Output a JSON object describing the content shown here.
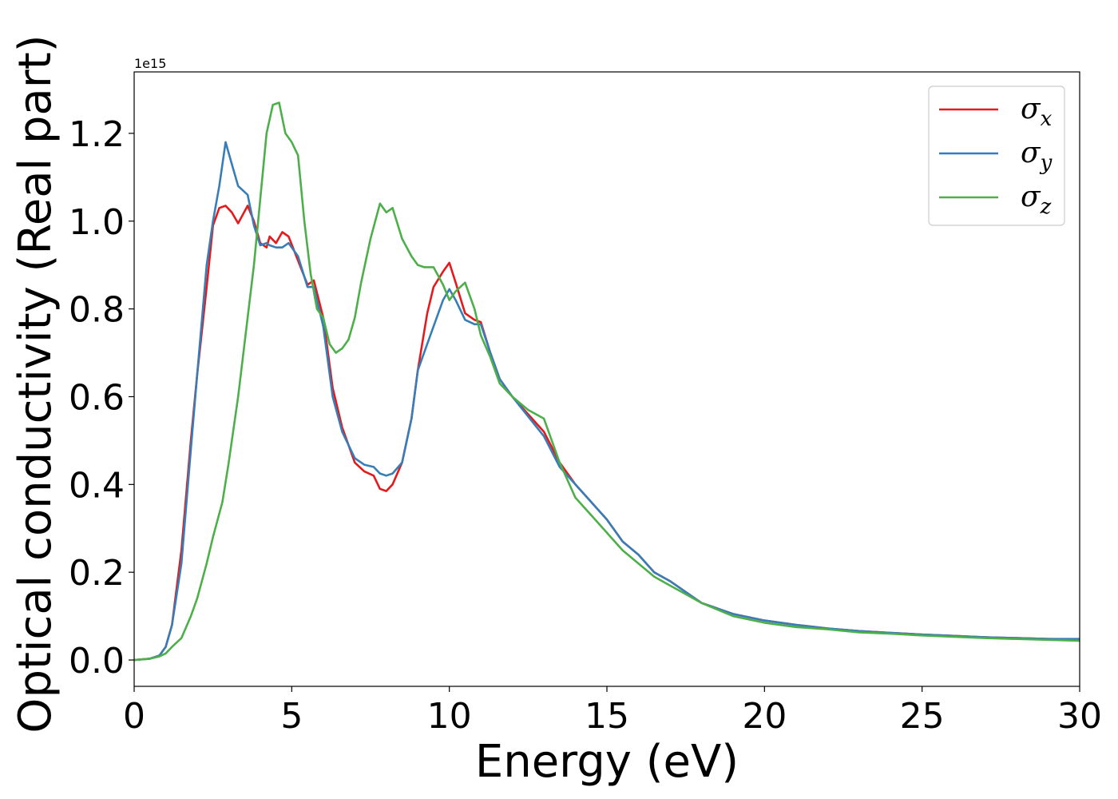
{
  "chart_data": {
    "type": "line",
    "title": "",
    "xlabel": "Energy (eV)",
    "ylabel": "Optical conductivity (Real part)",
    "y_offset_label": "1e15",
    "xlim": [
      0,
      30
    ],
    "ylim": [
      -0.06,
      1.34
    ],
    "xticks": [
      0,
      5,
      10,
      15,
      20,
      25,
      30
    ],
    "xtick_labels": [
      "0",
      "5",
      "10",
      "15",
      "20",
      "25",
      "30"
    ],
    "yticks": [
      0.0,
      0.2,
      0.4,
      0.6,
      0.8,
      1.0,
      1.2
    ],
    "ytick_labels": [
      "0.0",
      "0.2",
      "0.4",
      "0.6",
      "0.8",
      "1.0",
      "1.2"
    ],
    "grid": false,
    "legend_position": "top-right",
    "series": [
      {
        "legend_base": "σ",
        "legend_sub": "x",
        "color": "#e41a1c",
        "x": [
          0,
          0.5,
          0.8,
          1.0,
          1.2,
          1.5,
          1.8,
          2.0,
          2.3,
          2.5,
          2.7,
          2.9,
          3.1,
          3.3,
          3.6,
          3.8,
          4.0,
          4.2,
          4.3,
          4.5,
          4.7,
          4.9,
          5.2,
          5.5,
          5.7,
          6.0,
          6.3,
          6.6,
          7.0,
          7.3,
          7.6,
          7.8,
          8.0,
          8.2,
          8.5,
          8.8,
          9.0,
          9.3,
          9.5,
          9.8,
          10.0,
          10.2,
          10.5,
          10.8,
          11.0,
          11.3,
          11.6,
          12.0,
          12.5,
          13.0,
          13.5,
          14.0,
          14.5,
          15.0,
          15.5,
          16.0,
          16.5,
          17.0,
          17.5,
          18.0,
          19.0,
          20.0,
          21.0,
          22.0,
          23.0,
          24.0,
          25.0,
          26.0,
          27.0,
          28.0,
          29.0,
          30.0
        ],
        "values": [
          0.0,
          0.003,
          0.01,
          0.03,
          0.08,
          0.25,
          0.5,
          0.65,
          0.85,
          0.99,
          1.03,
          1.035,
          1.02,
          0.995,
          1.035,
          1.0,
          0.95,
          0.94,
          0.965,
          0.95,
          0.975,
          0.965,
          0.91,
          0.855,
          0.865,
          0.78,
          0.62,
          0.53,
          0.45,
          0.43,
          0.42,
          0.39,
          0.385,
          0.4,
          0.45,
          0.55,
          0.66,
          0.79,
          0.85,
          0.885,
          0.905,
          0.86,
          0.79,
          0.775,
          0.77,
          0.7,
          0.64,
          0.6,
          0.56,
          0.52,
          0.45,
          0.4,
          0.36,
          0.32,
          0.27,
          0.24,
          0.2,
          0.18,
          0.155,
          0.13,
          0.105,
          0.09,
          0.08,
          0.072,
          0.066,
          0.062,
          0.058,
          0.055,
          0.052,
          0.05,
          0.048,
          0.047
        ]
      },
      {
        "legend_base": "σ",
        "legend_sub": "y",
        "color": "#377eb8",
        "x": [
          0,
          0.5,
          0.8,
          1.0,
          1.2,
          1.5,
          1.8,
          2.0,
          2.3,
          2.5,
          2.7,
          2.9,
          3.1,
          3.3,
          3.6,
          3.8,
          4.0,
          4.2,
          4.3,
          4.5,
          4.7,
          4.9,
          5.2,
          5.5,
          5.7,
          6.0,
          6.3,
          6.6,
          7.0,
          7.3,
          7.6,
          7.8,
          8.0,
          8.2,
          8.5,
          8.8,
          9.0,
          9.3,
          9.5,
          9.8,
          10.0,
          10.2,
          10.5,
          10.8,
          11.0,
          11.3,
          11.6,
          12.0,
          12.5,
          13.0,
          13.5,
          14.0,
          14.5,
          15.0,
          15.5,
          16.0,
          16.5,
          17.0,
          17.5,
          18.0,
          19.0,
          20.0,
          21.0,
          22.0,
          23.0,
          24.0,
          25.0,
          26.0,
          27.0,
          28.0,
          29.0,
          30.0
        ],
        "values": [
          0.0,
          0.003,
          0.01,
          0.03,
          0.08,
          0.22,
          0.48,
          0.65,
          0.9,
          1.0,
          1.08,
          1.18,
          1.13,
          1.08,
          1.06,
          0.99,
          0.945,
          0.95,
          0.945,
          0.94,
          0.94,
          0.95,
          0.92,
          0.85,
          0.85,
          0.76,
          0.6,
          0.52,
          0.46,
          0.445,
          0.44,
          0.425,
          0.42,
          0.425,
          0.45,
          0.55,
          0.66,
          0.72,
          0.76,
          0.82,
          0.845,
          0.82,
          0.775,
          0.765,
          0.765,
          0.7,
          0.64,
          0.6,
          0.555,
          0.51,
          0.44,
          0.4,
          0.36,
          0.32,
          0.27,
          0.24,
          0.2,
          0.18,
          0.155,
          0.13,
          0.105,
          0.09,
          0.08,
          0.072,
          0.066,
          0.062,
          0.058,
          0.055,
          0.052,
          0.05,
          0.048,
          0.048
        ]
      },
      {
        "legend_base": "σ",
        "legend_sub": "z",
        "color": "#4daf4a",
        "x": [
          0,
          0.5,
          0.8,
          1.0,
          1.2,
          1.5,
          1.8,
          2.0,
          2.3,
          2.5,
          2.8,
          3.0,
          3.3,
          3.6,
          3.8,
          4.0,
          4.2,
          4.4,
          4.6,
          4.8,
          5.0,
          5.2,
          5.4,
          5.6,
          5.8,
          6.0,
          6.2,
          6.4,
          6.6,
          6.8,
          7.0,
          7.2,
          7.5,
          7.8,
          8.0,
          8.2,
          8.5,
          8.8,
          9.0,
          9.2,
          9.5,
          9.8,
          10.0,
          10.2,
          10.5,
          10.8,
          11.0,
          11.3,
          11.6,
          12.0,
          12.5,
          13.0,
          13.5,
          14.0,
          14.5,
          15.0,
          15.5,
          16.0,
          16.5,
          17.0,
          17.5,
          18.0,
          19.0,
          20.0,
          21.0,
          22.0,
          23.0,
          24.0,
          25.0,
          26.0,
          27.0,
          28.0,
          29.0,
          30.0
        ],
        "values": [
          0.0,
          0.003,
          0.008,
          0.015,
          0.03,
          0.05,
          0.1,
          0.14,
          0.22,
          0.28,
          0.36,
          0.45,
          0.6,
          0.78,
          0.9,
          1.05,
          1.2,
          1.265,
          1.27,
          1.2,
          1.18,
          1.15,
          1.0,
          0.88,
          0.8,
          0.78,
          0.72,
          0.7,
          0.71,
          0.73,
          0.78,
          0.86,
          0.96,
          1.04,
          1.02,
          1.03,
          0.96,
          0.92,
          0.9,
          0.895,
          0.895,
          0.855,
          0.82,
          0.84,
          0.86,
          0.8,
          0.74,
          0.69,
          0.63,
          0.6,
          0.57,
          0.55,
          0.45,
          0.37,
          0.33,
          0.29,
          0.25,
          0.22,
          0.19,
          0.17,
          0.15,
          0.13,
          0.1,
          0.085,
          0.075,
          0.07,
          0.063,
          0.06,
          0.056,
          0.053,
          0.05,
          0.048,
          0.046,
          0.044
        ]
      }
    ]
  }
}
